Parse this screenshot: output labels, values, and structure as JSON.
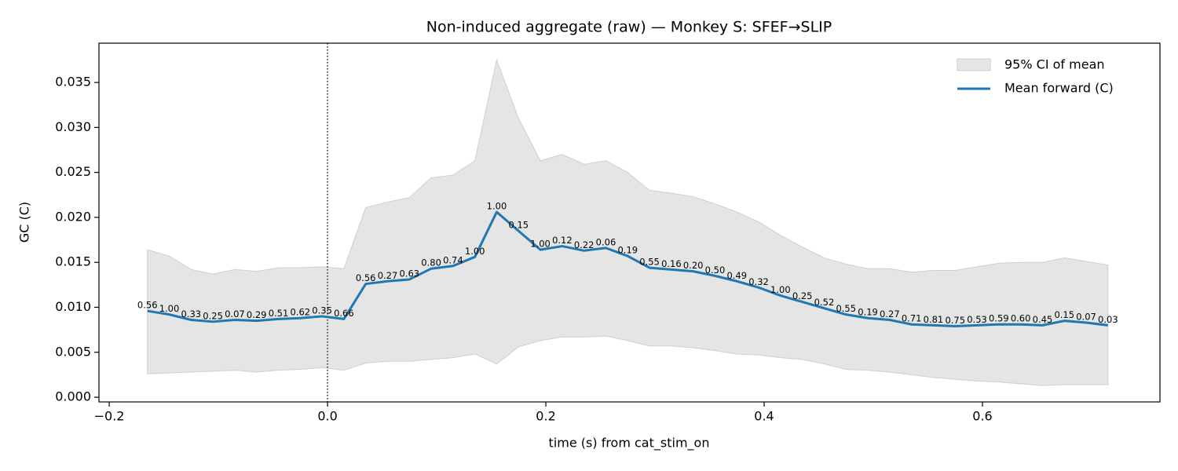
{
  "chart_data": {
    "type": "line",
    "title": "Non-induced aggregate (raw) — Monkey S: SFEF→SLIP",
    "xlabel": "time (s) from cat_stim_on",
    "ylabel": "GC (C)",
    "x": [
      -0.165,
      -0.145,
      -0.125,
      -0.105,
      -0.085,
      -0.065,
      -0.045,
      -0.025,
      -0.005,
      0.015,
      0.035,
      0.055,
      0.075,
      0.095,
      0.115,
      0.135,
      0.155,
      0.175,
      0.195,
      0.215,
      0.235,
      0.255,
      0.275,
      0.295,
      0.315,
      0.335,
      0.355,
      0.375,
      0.395,
      0.415,
      0.435,
      0.455,
      0.475,
      0.495,
      0.515,
      0.535,
      0.555,
      0.575,
      0.595,
      0.615,
      0.635,
      0.655,
      0.675,
      0.695,
      0.715
    ],
    "series": [
      {
        "name": "Mean forward (C)",
        "color": "#1f77b4",
        "values": [
          0.0096,
          0.0092,
          0.0086,
          0.0084,
          0.0086,
          0.0085,
          0.0087,
          0.0088,
          0.009,
          0.0087,
          0.0126,
          0.0129,
          0.0131,
          0.0143,
          0.0146,
          0.0156,
          0.0206,
          0.0185,
          0.0164,
          0.0168,
          0.0163,
          0.0166,
          0.0157,
          0.0144,
          0.0142,
          0.014,
          0.0135,
          0.0129,
          0.0122,
          0.0113,
          0.0106,
          0.0099,
          0.0092,
          0.0088,
          0.0086,
          0.0081,
          0.008,
          0.0079,
          0.008,
          0.0081,
          0.0081,
          0.008,
          0.0085,
          0.0083,
          0.008
        ],
        "point_labels": [
          "0.56",
          "1.00",
          "0.33",
          "0.25",
          "0.07",
          "0.29",
          "0.51",
          "0.62",
          "0.35",
          "0.66",
          "0.56",
          "0.27",
          "0.63",
          "0.80",
          "0.74",
          "1.00",
          "1.00",
          "0.15",
          "1.00",
          "0.12",
          "0.22",
          "0.06",
          "0.19",
          "0.55",
          "0.16",
          "0.20",
          "0.50",
          "0.49",
          "0.32",
          "1.00",
          "0.25",
          "0.52",
          "0.55",
          "0.19",
          "0.27",
          "0.71",
          "0.81",
          "0.75",
          "0.53",
          "0.59",
          "0.60",
          "0.45",
          "0.15",
          "0.07",
          "0.03"
        ]
      }
    ],
    "band": {
      "name": "95% CI of mean",
      "color": "#e5e5e5",
      "upper": [
        0.0164,
        0.0157,
        0.0142,
        0.0137,
        0.0142,
        0.014,
        0.0144,
        0.0144,
        0.0145,
        0.0143,
        0.0211,
        0.0217,
        0.0222,
        0.0244,
        0.0247,
        0.0263,
        0.0375,
        0.031,
        0.0263,
        0.027,
        0.0259,
        0.0263,
        0.025,
        0.023,
        0.0227,
        0.0223,
        0.0215,
        0.0206,
        0.0195,
        0.018,
        0.0167,
        0.0155,
        0.0148,
        0.0143,
        0.0143,
        0.0139,
        0.0141,
        0.0141,
        0.0145,
        0.0149,
        0.015,
        0.015,
        0.0155,
        0.0151,
        0.0147
      ],
      "lower": [
        0.0026,
        0.0027,
        0.0028,
        0.0029,
        0.003,
        0.0028,
        0.003,
        0.0031,
        0.0033,
        0.003,
        0.0038,
        0.004,
        0.004,
        0.0042,
        0.0044,
        0.0048,
        0.0037,
        0.0056,
        0.0063,
        0.0067,
        0.0067,
        0.0068,
        0.0063,
        0.0057,
        0.0057,
        0.0055,
        0.0052,
        0.0048,
        0.0047,
        0.0044,
        0.0042,
        0.0037,
        0.0031,
        0.003,
        0.0028,
        0.0025,
        0.0022,
        0.002,
        0.0018,
        0.0017,
        0.0015,
        0.0013,
        0.0014,
        0.0014,
        0.0014
      ]
    },
    "vline": 0,
    "xlim": [
      -0.2094,
      0.7626
    ],
    "ylim": [
      -0.00052,
      0.03937
    ],
    "xticks": [
      {
        "value": -0.2,
        "label": "−0.2"
      },
      {
        "value": 0,
        "label": "0.0"
      },
      {
        "value": 0.2,
        "label": "0.2"
      },
      {
        "value": 0.4,
        "label": "0.4"
      },
      {
        "value": 0.6,
        "label": "0.6"
      }
    ],
    "yticks": [
      {
        "value": 0,
        "label": "0.000"
      },
      {
        "value": 0.005,
        "label": "0.005"
      },
      {
        "value": 0.01,
        "label": "0.010"
      },
      {
        "value": 0.015,
        "label": "0.015"
      },
      {
        "value": 0.02,
        "label": "0.020"
      },
      {
        "value": 0.025,
        "label": "0.025"
      },
      {
        "value": 0.03,
        "label": "0.030"
      },
      {
        "value": 0.035,
        "label": "0.035"
      }
    ],
    "legend": "upper right"
  }
}
